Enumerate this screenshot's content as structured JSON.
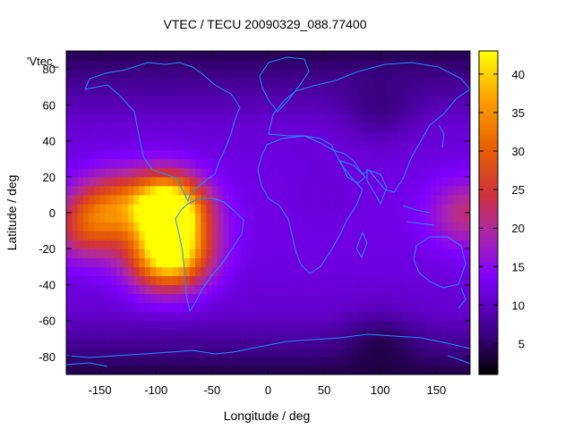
{
  "chart_data": {
    "type": "heatmap",
    "title": "VTEC / TECU 20090329_088.77400",
    "xlabel": "Longitude / deg",
    "ylabel": "Latitude / deg",
    "xlim": [
      -180,
      180
    ],
    "ylim": [
      -90,
      90
    ],
    "x_ticks": [
      -150,
      -100,
      -50,
      0,
      50,
      100,
      150
    ],
    "y_ticks": [
      -80,
      -60,
      -40,
      -20,
      0,
      20,
      40,
      60,
      80
    ],
    "colorbar": {
      "range": [
        1,
        43
      ],
      "ticks": [
        5,
        10,
        15,
        20,
        25,
        30,
        35,
        40
      ],
      "palette_stops": [
        "#000000",
        "#3a0080",
        "#8000ff",
        "#c03080",
        "#e05000",
        "#ff9900",
        "#ffff00"
      ]
    },
    "legend_label": "'Vtec_",
    "grid": false,
    "overlay": "coastlines",
    "field_description_points": [
      {
        "lon": -140,
        "lat": 5,
        "vtec": 29
      },
      {
        "lon": -160,
        "lat": -8,
        "vtec": 30
      },
      {
        "lon": -95,
        "lat": 5,
        "vtec": 38
      },
      {
        "lon": -85,
        "lat": 0,
        "vtec": 42
      },
      {
        "lon": -95,
        "lat": -25,
        "vtec": 36
      },
      {
        "lon": -80,
        "lat": -22,
        "vtec": 34
      },
      {
        "lon": -20,
        "lat": 0,
        "vtec": 12
      },
      {
        "lon": 50,
        "lat": 10,
        "vtec": 11
      },
      {
        "lon": 100,
        "lat": 60,
        "vtec": 5
      },
      {
        "lon": 100,
        "lat": -75,
        "vtec": 3
      },
      {
        "lon": 178,
        "lat": 0,
        "vtec": 25
      }
    ]
  }
}
